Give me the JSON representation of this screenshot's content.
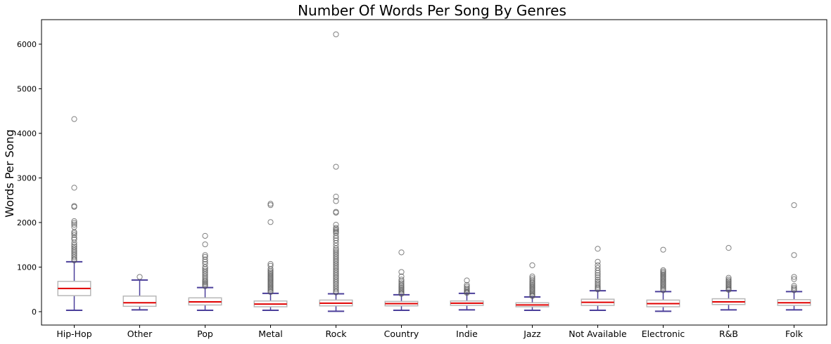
{
  "chart_data": {
    "type": "box",
    "title": "Number Of Words Per Song By Genres",
    "xlabel": "",
    "ylabel": "Words Per Song",
    "ylim": [
      -300,
      6550
    ],
    "yticks": [
      0,
      1000,
      2000,
      3000,
      4000,
      5000,
      6000
    ],
    "grid": false,
    "legend": "none",
    "colors": {
      "box": "#b8b8b8",
      "whisker": "#4b3f9a",
      "median": "#e00000",
      "flier": "#555555"
    },
    "categories": [
      "Hip-Hop",
      "Other",
      "Pop",
      "Metal",
      "Rock",
      "Country",
      "Indie",
      "Jazz",
      "Not Available",
      "Electronic",
      "R&B",
      "Folk"
    ],
    "boxes": [
      {
        "q1": 360,
        "median": 520,
        "q3": 680,
        "whisker_low": 30,
        "whisker_high": 1120,
        "outliers": [
          4320,
          2780,
          2370,
          2350,
          2030,
          1990,
          1950,
          1900,
          1790,
          1760,
          1720,
          1660,
          1620,
          1550,
          1500,
          1460,
          1420,
          1380,
          1340,
          1300,
          1260,
          1220,
          1180,
          1150
        ]
      },
      {
        "q1": 120,
        "median": 200,
        "q3": 350,
        "whisker_low": 40,
        "whisker_high": 710,
        "outliers": [
          780
        ]
      },
      {
        "q1": 150,
        "median": 220,
        "q3": 310,
        "whisker_low": 30,
        "whisker_high": 540,
        "outliers": [
          1700,
          1510,
          1270,
          1230,
          1170,
          1120,
          1070,
          1000,
          960,
          920,
          880,
          840,
          800,
          760,
          720,
          690,
          660,
          630,
          600,
          570
        ]
      },
      {
        "q1": 110,
        "median": 170,
        "q3": 240,
        "whisker_low": 30,
        "whisker_high": 410,
        "outliers": [
          2420,
          2390,
          2010,
          1070,
          1030,
          960,
          920,
          890,
          860,
          830,
          800,
          770,
          740,
          710,
          680,
          650,
          620,
          590,
          560,
          530,
          500,
          470,
          440
        ]
      },
      {
        "q1": 130,
        "median": 190,
        "q3": 260,
        "whisker_low": 10,
        "whisker_high": 400,
        "outliers": [
          6220,
          3250,
          2580,
          2480,
          2240,
          2220,
          1950,
          1880,
          1850,
          1820,
          1790,
          1760,
          1700,
          1650,
          1600,
          1540,
          1480,
          1420,
          1380,
          1340,
          1300,
          1260,
          1220,
          1180,
          1140,
          1100,
          1060,
          1020,
          980,
          940,
          900,
          860,
          820,
          780,
          740,
          700,
          660,
          620,
          580,
          540,
          500,
          460,
          430
        ]
      },
      {
        "q1": 130,
        "median": 180,
        "q3": 230,
        "whisker_low": 30,
        "whisker_high": 380,
        "outliers": [
          1330,
          890,
          790,
          720,
          680,
          640,
          600,
          570,
          540,
          510,
          480,
          450,
          420,
          400
        ]
      },
      {
        "q1": 140,
        "median": 190,
        "q3": 240,
        "whisker_low": 40,
        "whisker_high": 410,
        "outliers": [
          700,
          600,
          560,
          520,
          490,
          460,
          440,
          420
        ]
      },
      {
        "q1": 110,
        "median": 150,
        "q3": 200,
        "whisker_low": 30,
        "whisker_high": 330,
        "outliers": [
          1040,
          790,
          750,
          710,
          670,
          640,
          610,
          580,
          550,
          520,
          490,
          460,
          430,
          400,
          370,
          350
        ]
      },
      {
        "q1": 140,
        "median": 210,
        "q3": 280,
        "whisker_low": 30,
        "whisker_high": 470,
        "outliers": [
          1410,
          1120,
          1040,
          980,
          920,
          870,
          820,
          770,
          720,
          680,
          640,
          600,
          560,
          530,
          500
        ]
      },
      {
        "q1": 110,
        "median": 180,
        "q3": 260,
        "whisker_low": 10,
        "whisker_high": 450,
        "outliers": [
          1390,
          930,
          900,
          870,
          840,
          810,
          780,
          750,
          720,
          690,
          660,
          630,
          600,
          570,
          540,
          510,
          480
        ]
      },
      {
        "q1": 160,
        "median": 220,
        "q3": 290,
        "whisker_low": 40,
        "whisker_high": 470,
        "outliers": [
          1430,
          760,
          720,
          690,
          660,
          630,
          600,
          570,
          540,
          510,
          490
        ]
      },
      {
        "q1": 140,
        "median": 200,
        "q3": 270,
        "whisker_low": 40,
        "whisker_high": 450,
        "outliers": [
          2390,
          1270,
          780,
          730,
          580,
          540,
          510,
          480
        ]
      }
    ]
  }
}
